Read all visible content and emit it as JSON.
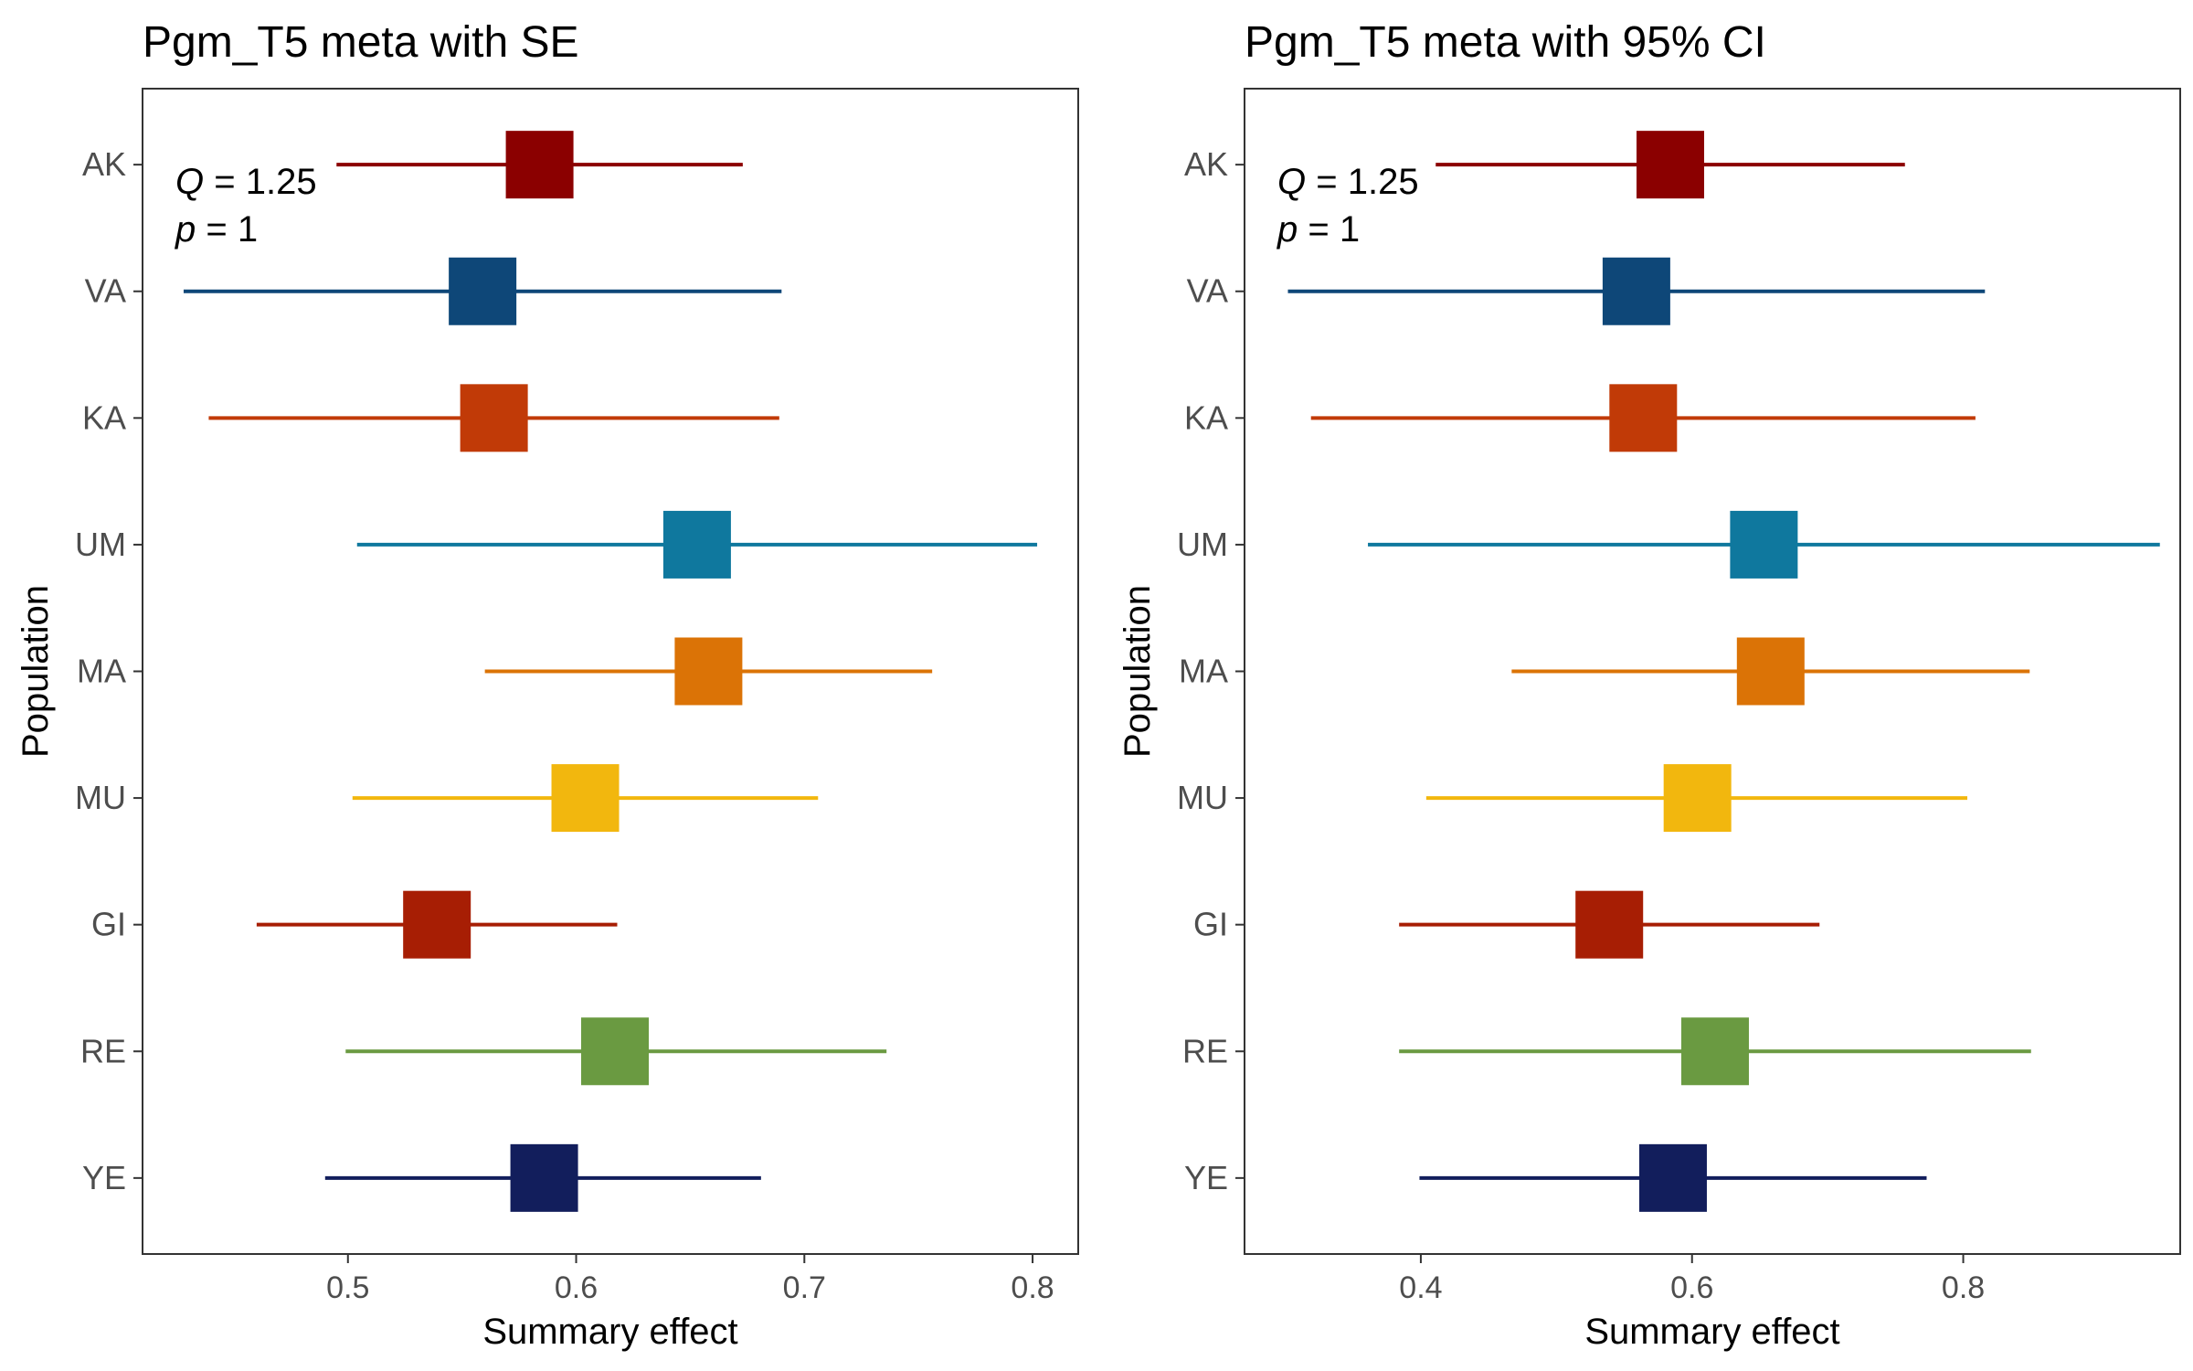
{
  "chart_data": [
    {
      "type": "forest",
      "title": "Pgm_T5 meta with SE",
      "xlabel": "Summary effect",
      "ylabel": "Population",
      "xlim": [
        0.41,
        0.82
      ],
      "xticks": [
        0.5,
        0.6,
        0.7,
        0.8
      ],
      "xtick_labels": [
        "0.5",
        "0.6",
        "0.7",
        "0.8"
      ],
      "grid": false,
      "annotation": {
        "q_symbol": "Q",
        "q_value": " = 1.25",
        "p_symbol": "p",
        "p_value": " = 1"
      },
      "series": [
        {
          "category": "AK",
          "estimate": 0.584,
          "lower": 0.495,
          "upper": 0.673,
          "color": "#8B0000"
        },
        {
          "category": "VA",
          "estimate": 0.559,
          "lower": 0.428,
          "upper": 0.69,
          "color": "#0E4778"
        },
        {
          "category": "KA",
          "estimate": 0.564,
          "lower": 0.439,
          "upper": 0.689,
          "color": "#C13A07"
        },
        {
          "category": "UM",
          "estimate": 0.653,
          "lower": 0.504,
          "upper": 0.802,
          "color": "#0F789E"
        },
        {
          "category": "MA",
          "estimate": 0.658,
          "lower": 0.56,
          "upper": 0.756,
          "color": "#DB7306"
        },
        {
          "category": "MU",
          "estimate": 0.604,
          "lower": 0.502,
          "upper": 0.706,
          "color": "#F2B70E"
        },
        {
          "category": "GI",
          "estimate": 0.539,
          "lower": 0.46,
          "upper": 0.618,
          "color": "#A71E04"
        },
        {
          "category": "RE",
          "estimate": 0.617,
          "lower": 0.499,
          "upper": 0.736,
          "color": "#6A9A41"
        },
        {
          "category": "YE",
          "estimate": 0.586,
          "lower": 0.49,
          "upper": 0.681,
          "color": "#121E5C"
        }
      ]
    },
    {
      "type": "forest",
      "title": "Pgm_T5 meta with 95% CI",
      "xlabel": "Summary effect",
      "ylabel": "Population",
      "xlim": [
        0.27,
        0.96
      ],
      "xticks": [
        0.4,
        0.6,
        0.8
      ],
      "xtick_labels": [
        "0.4",
        "0.6",
        "0.8"
      ],
      "grid": false,
      "annotation": {
        "q_symbol": "Q",
        "q_value": " = 1.25",
        "p_symbol": "p",
        "p_value": " = 1"
      },
      "series": [
        {
          "category": "AK",
          "estimate": 0.584,
          "lower": 0.411,
          "upper": 0.757,
          "color": "#8B0000"
        },
        {
          "category": "VA",
          "estimate": 0.559,
          "lower": 0.302,
          "upper": 0.816,
          "color": "#0E4778"
        },
        {
          "category": "KA",
          "estimate": 0.564,
          "lower": 0.319,
          "upper": 0.809,
          "color": "#C13A07"
        },
        {
          "category": "UM",
          "estimate": 0.653,
          "lower": 0.361,
          "upper": 0.945,
          "color": "#0F789E"
        },
        {
          "category": "MA",
          "estimate": 0.658,
          "lower": 0.467,
          "upper": 0.849,
          "color": "#DB7306"
        },
        {
          "category": "MU",
          "estimate": 0.604,
          "lower": 0.404,
          "upper": 0.803,
          "color": "#F2B70E"
        },
        {
          "category": "GI",
          "estimate": 0.539,
          "lower": 0.384,
          "upper": 0.694,
          "color": "#A71E04"
        },
        {
          "category": "RE",
          "estimate": 0.617,
          "lower": 0.384,
          "upper": 0.85,
          "color": "#6A9A41"
        },
        {
          "category": "YE",
          "estimate": 0.586,
          "lower": 0.399,
          "upper": 0.773,
          "color": "#121E5C"
        }
      ]
    }
  ]
}
